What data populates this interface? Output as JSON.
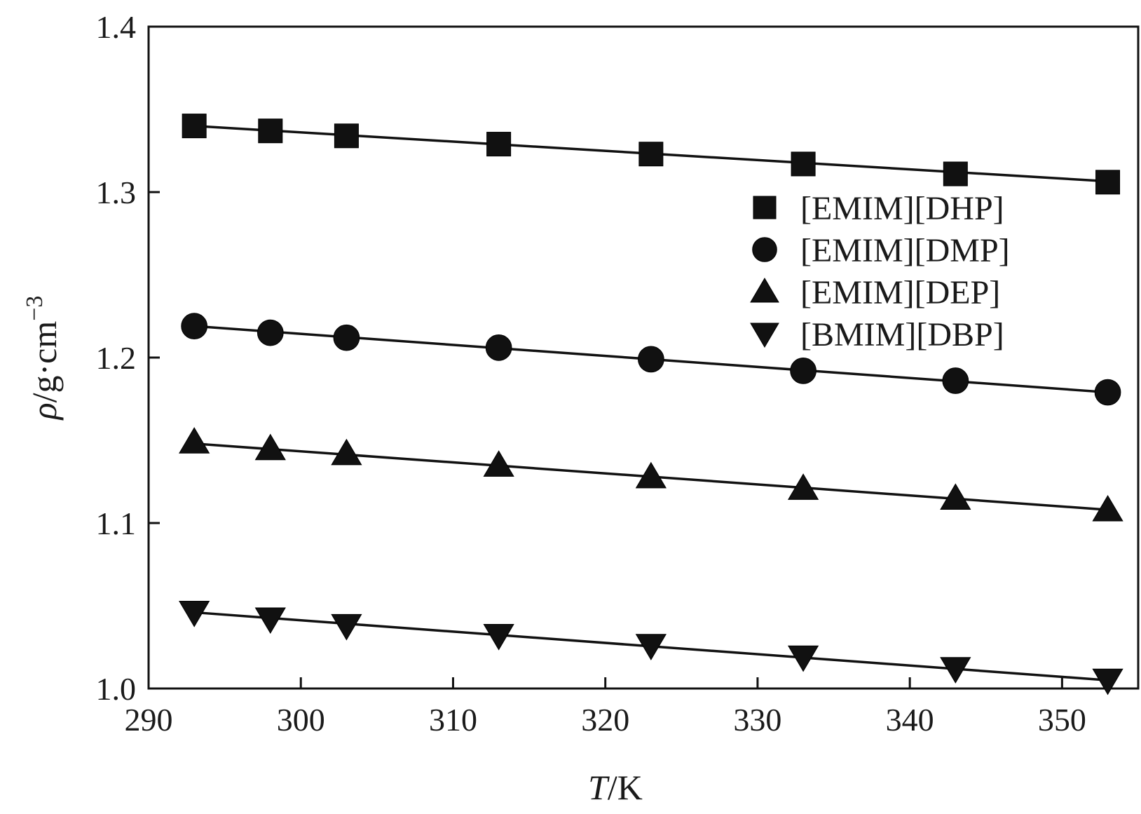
{
  "chart_data": {
    "type": "scatter",
    "title": "",
    "xlabel": {
      "italic": "T",
      "rest": "/K"
    },
    "ylabel": {
      "italic": "ρ",
      "rest": "/g·cm",
      "sup": "−3"
    },
    "xlim": [
      290,
      355
    ],
    "ylim": [
      1.0,
      1.4
    ],
    "xticks": [
      "290",
      "300",
      "310",
      "320",
      "330",
      "340",
      "350"
    ],
    "yticks": [
      "1.0",
      "1.1",
      "1.2",
      "1.3",
      "1.4"
    ],
    "grid": false,
    "legend_position": "top-right",
    "x": [
      293,
      298,
      303,
      313,
      323,
      333,
      343,
      353
    ],
    "series": [
      {
        "name": "[EMIM][DHP]",
        "marker": "square",
        "values": [
          1.34,
          1.337,
          1.334,
          1.329,
          1.323,
          1.317,
          1.311,
          1.306
        ],
        "fit": [
          1.34,
          1.3065
        ]
      },
      {
        "name": "[EMIM][DMP]",
        "marker": "circle",
        "values": [
          1.219,
          1.215,
          1.212,
          1.206,
          1.199,
          1.192,
          1.186,
          1.179
        ],
        "fit": [
          1.219,
          1.179
        ]
      },
      {
        "name": "[EMIM][DEP]",
        "marker": "triangle-up",
        "values": [
          1.149,
          1.145,
          1.142,
          1.135,
          1.128,
          1.121,
          1.115,
          1.108
        ],
        "fit": [
          1.148,
          1.108
        ]
      },
      {
        "name": "[BMIM][DBP]",
        "marker": "triangle-down",
        "values": [
          1.046,
          1.042,
          1.038,
          1.032,
          1.026,
          1.019,
          1.012,
          1.005
        ],
        "fit": [
          1.046,
          1.005
        ]
      }
    ],
    "colors": {
      "marker": "#111111",
      "line": "#111111",
      "axis": "#111111",
      "background": "#ffffff"
    }
  }
}
